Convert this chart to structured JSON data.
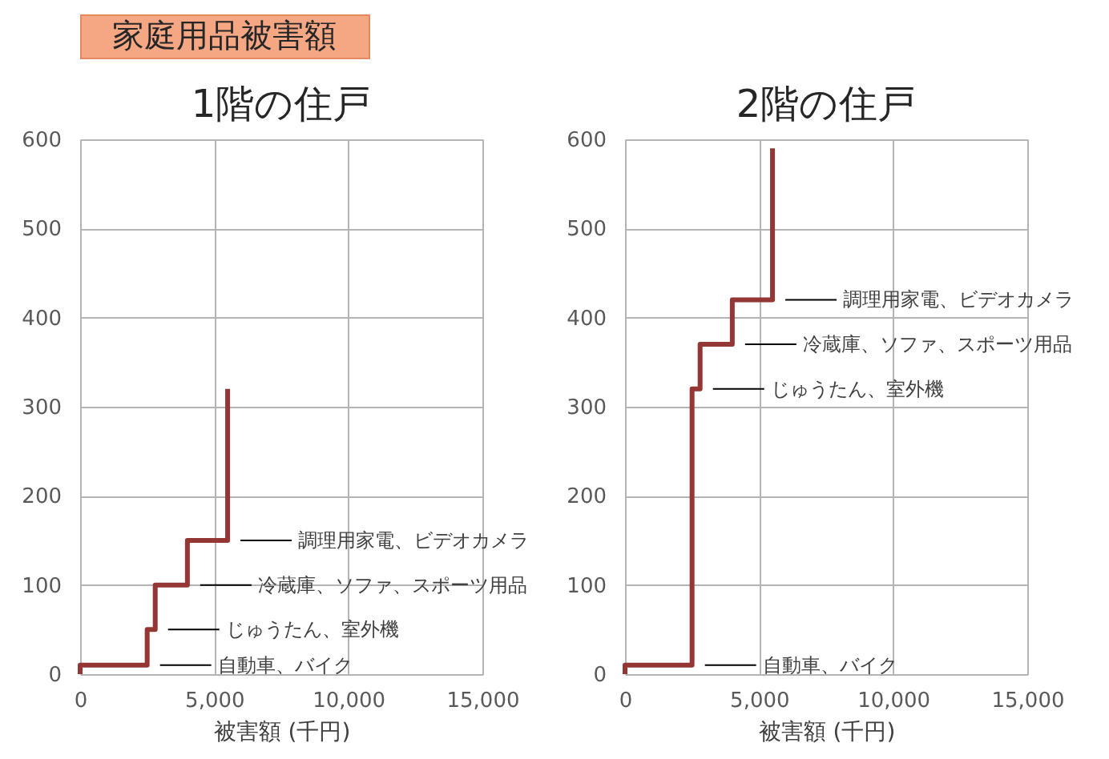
{
  "chart_data": [
    {
      "type": "line",
      "title": "1階の住戸",
      "xlabel": "被害額 (千円)",
      "annotations": [
        "家庭用品被害額",
        {
          "text": "自動車、バイク",
          "x": 2500,
          "y": 10
        },
        {
          "text": "じゅうたん、室外機",
          "x": 2800,
          "y": 50
        },
        {
          "text": "冷蔵庫、ソファ、スポーツ用品",
          "x": 4000,
          "y": 100
        },
        {
          "text": "調理用家電、ビデオカメラ",
          "x": 5500,
          "y": 150
        }
      ],
      "x": [
        0,
        0,
        2500,
        2500,
        2800,
        2800,
        4000,
        4000,
        5500,
        5500
      ],
      "series": [
        {
          "color": "#943634",
          "values": [
            0,
            10,
            10,
            50,
            50,
            100,
            100,
            150,
            150,
            320
          ]
        }
      ],
      "xlim": [
        0,
        15000
      ],
      "xticks": [
        0,
        {
          "value": 5000,
          "label": "5,000"
        },
        {
          "value": 10000,
          "label": "10,000"
        },
        {
          "value": 15000,
          "label": "15,000"
        }
      ],
      "ylim": [
        0,
        600
      ],
      "yticks": [
        0,
        100,
        200,
        300,
        400,
        500,
        600
      ],
      "grid": true,
      "legend": false,
      "marker": "none",
      "line_style": "solid"
    },
    {
      "type": "line",
      "title": "2階の住戸",
      "xlabel": "被害額 (千円)",
      "annotations": [
        {
          "text": "自動車、バイク",
          "x": 2500,
          "y": 10
        },
        {
          "text": "じゅうたん、室外機",
          "x": 2800,
          "y": 320
        },
        {
          "text": "冷蔵庫、ソファ、スポーツ用品",
          "x": 4000,
          "y": 370
        },
        {
          "text": "調理用家電、ビデオカメラ",
          "x": 5500,
          "y": 420
        }
      ],
      "x": [
        0,
        0,
        2500,
        2500,
        2800,
        2800,
        4000,
        4000,
        5500,
        5500
      ],
      "series": [
        {
          "color": "#943634",
          "values": [
            0,
            10,
            10,
            320,
            320,
            370,
            370,
            420,
            420,
            590
          ]
        }
      ],
      "xlim": [
        0,
        15000
      ],
      "xticks": [
        0,
        {
          "value": 5000,
          "label": "5,000"
        },
        {
          "value": 10000,
          "label": "10,000"
        },
        {
          "value": 15000,
          "label": "15,000"
        }
      ],
      "ylim": [
        0,
        600
      ],
      "yticks": [
        0,
        100,
        200,
        300,
        400,
        500,
        600
      ],
      "grid": true,
      "legend": false,
      "marker": "none",
      "line_style": "solid"
    }
  ]
}
